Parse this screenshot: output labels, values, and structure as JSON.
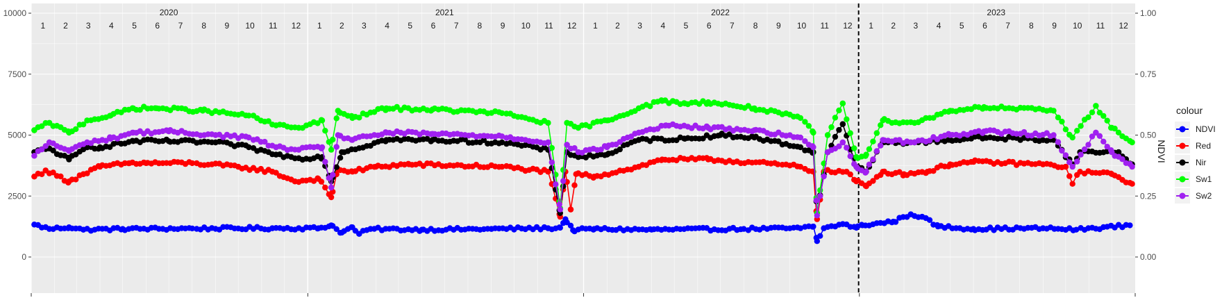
{
  "chart_data": {
    "type": "line",
    "title": "",
    "xlabel": "",
    "ylabel": "",
    "y2label": "NDVI",
    "x_range": [
      "2020-01-01",
      "2024-01-01"
    ],
    "ylim": [
      0,
      10000
    ],
    "y_ticks": [
      0,
      2500,
      5000,
      7500,
      10000
    ],
    "y2lim": [
      0,
      1
    ],
    "y2_ticks": [
      "0.00",
      "0.25",
      "0.50",
      "0.75",
      "1.00"
    ],
    "years": [
      {
        "label": "2020",
        "months": [
          "1",
          "2",
          "3",
          "4",
          "5",
          "6",
          "7",
          "8",
          "9",
          "10",
          "11",
          "12"
        ]
      },
      {
        "label": "2021",
        "months": [
          "1",
          "2",
          "3",
          "4",
          "5",
          "6",
          "7",
          "8",
          "9",
          "10",
          "11",
          "12"
        ]
      },
      {
        "label": "2022",
        "months": [
          "1",
          "2",
          "3",
          "4",
          "5",
          "6",
          "7",
          "8",
          "9",
          "10",
          "11",
          "12"
        ]
      },
      {
        "label": "2023",
        "months": [
          "1",
          "2",
          "3",
          "4",
          "5",
          "6",
          "7",
          "8",
          "9",
          "10",
          "11",
          "12"
        ]
      }
    ],
    "vline_date": "2022-12-31",
    "grid": true,
    "legend": {
      "title": "colour",
      "placement": "right"
    },
    "series": [
      {
        "name": "NDVI",
        "color": "#0000ff",
        "axis": "right",
        "anchors": [
          [
            "2020-01-05",
            0.133
          ],
          [
            "2020-01-25",
            0.115
          ],
          [
            "2020-02-20",
            0.122
          ],
          [
            "2020-03-10",
            0.112
          ],
          [
            "2020-05-01",
            0.115
          ],
          [
            "2020-08-01",
            0.117
          ],
          [
            "2020-11-15",
            0.118
          ],
          [
            "2021-01-15",
            0.118
          ],
          [
            "2021-02-01",
            0.13
          ],
          [
            "2021-02-15",
            0.1
          ],
          [
            "2021-03-01",
            0.122
          ],
          [
            "2021-03-10",
            0.095
          ],
          [
            "2021-03-25",
            0.115
          ],
          [
            "2021-06-01",
            0.112
          ],
          [
            "2021-09-01",
            0.115
          ],
          [
            "2021-11-15",
            0.118
          ],
          [
            "2021-12-01",
            0.12
          ],
          [
            "2021-12-08",
            0.155
          ],
          [
            "2021-12-18",
            0.11
          ],
          [
            "2022-01-15",
            0.115
          ],
          [
            "2022-04-01",
            0.112
          ],
          [
            "2022-08-01",
            0.115
          ],
          [
            "2022-10-15",
            0.118
          ],
          [
            "2022-11-01",
            0.125
          ],
          [
            "2022-11-06",
            0.065
          ],
          [
            "2022-11-15",
            0.118
          ],
          [
            "2022-12-10",
            0.135
          ],
          [
            "2022-12-28",
            0.12
          ],
          [
            "2023-01-05",
            0.13
          ],
          [
            "2023-02-15",
            0.145
          ],
          [
            "2023-03-10",
            0.175
          ],
          [
            "2023-03-25",
            0.165
          ],
          [
            "2023-04-15",
            0.125
          ],
          [
            "2023-06-01",
            0.115
          ],
          [
            "2023-09-01",
            0.118
          ],
          [
            "2023-10-15",
            0.112
          ],
          [
            "2023-12-25",
            0.13
          ]
        ]
      },
      {
        "name": "Red",
        "color": "#ff0000",
        "axis": "left",
        "anchors": [
          [
            "2020-01-05",
            3300
          ],
          [
            "2020-01-20",
            3550
          ],
          [
            "2020-02-20",
            3100
          ],
          [
            "2020-03-10",
            3400
          ],
          [
            "2020-04-01",
            3700
          ],
          [
            "2020-05-10",
            3850
          ],
          [
            "2020-06-01",
            3850
          ],
          [
            "2020-08-01",
            3850
          ],
          [
            "2020-10-01",
            3700
          ],
          [
            "2020-11-15",
            3500
          ],
          [
            "2020-12-15",
            3100
          ],
          [
            "2021-01-15",
            3200
          ],
          [
            "2021-02-01",
            2450
          ],
          [
            "2021-02-10",
            3600
          ],
          [
            "2021-03-01",
            3500
          ],
          [
            "2021-04-01",
            3700
          ],
          [
            "2021-05-15",
            3800
          ],
          [
            "2021-09-15",
            3700
          ],
          [
            "2021-11-15",
            3500
          ],
          [
            "2021-12-01",
            1650
          ],
          [
            "2021-12-08",
            3500
          ],
          [
            "2021-12-15",
            1950
          ],
          [
            "2021-12-22",
            3400
          ],
          [
            "2022-01-15",
            3300
          ],
          [
            "2022-03-15",
            3700
          ],
          [
            "2022-04-15",
            4000
          ],
          [
            "2022-06-15",
            4000
          ],
          [
            "2022-09-15",
            3800
          ],
          [
            "2022-10-15",
            3700
          ],
          [
            "2022-11-01",
            3500
          ],
          [
            "2022-11-06",
            1550
          ],
          [
            "2022-11-15",
            3500
          ],
          [
            "2022-12-15",
            3500
          ],
          [
            "2022-12-28",
            3100
          ],
          [
            "2023-01-10",
            2900
          ],
          [
            "2023-02-01",
            3500
          ],
          [
            "2023-03-01",
            3400
          ],
          [
            "2023-04-01",
            3500
          ],
          [
            "2023-05-01",
            3800
          ],
          [
            "2023-06-01",
            3900
          ],
          [
            "2023-09-01",
            3800
          ],
          [
            "2023-10-01",
            3700
          ],
          [
            "2023-10-10",
            3000
          ],
          [
            "2023-10-20",
            3500
          ],
          [
            "2023-12-01",
            3400
          ],
          [
            "2023-12-28",
            3000
          ]
        ]
      },
      {
        "name": "Nir",
        "color": "#000000",
        "axis": "left",
        "anchors": [
          [
            "2020-01-05",
            4300
          ],
          [
            "2020-01-25",
            4450
          ],
          [
            "2020-02-20",
            4000
          ],
          [
            "2020-03-15",
            4500
          ],
          [
            "2020-04-01",
            4500
          ],
          [
            "2020-05-15",
            4750
          ],
          [
            "2020-07-01",
            4750
          ],
          [
            "2020-09-01",
            4700
          ],
          [
            "2020-10-15",
            4500
          ],
          [
            "2020-11-20",
            4200
          ],
          [
            "2020-12-20",
            4050
          ],
          [
            "2021-01-20",
            4100
          ],
          [
            "2021-02-01",
            3100
          ],
          [
            "2021-02-15",
            4300
          ],
          [
            "2021-04-15",
            4800
          ],
          [
            "2021-06-15",
            4800
          ],
          [
            "2021-09-15",
            4700
          ],
          [
            "2021-11-15",
            4400
          ],
          [
            "2021-12-01",
            1800
          ],
          [
            "2021-12-10",
            4300
          ],
          [
            "2021-12-25",
            4100
          ],
          [
            "2022-02-01",
            4200
          ],
          [
            "2022-03-15",
            4800
          ],
          [
            "2022-05-15",
            4850
          ],
          [
            "2022-07-01",
            5000
          ],
          [
            "2022-08-15",
            4900
          ],
          [
            "2022-10-15",
            4500
          ],
          [
            "2022-11-01",
            4300
          ],
          [
            "2022-11-06",
            1800
          ],
          [
            "2022-11-20",
            4300
          ],
          [
            "2022-12-10",
            5450
          ],
          [
            "2022-12-28",
            3700
          ],
          [
            "2023-01-10",
            3500
          ],
          [
            "2023-02-01",
            4700
          ],
          [
            "2023-03-15",
            4700
          ],
          [
            "2023-05-01",
            4800
          ],
          [
            "2023-06-15",
            4900
          ],
          [
            "2023-09-15",
            4800
          ],
          [
            "2023-10-10",
            3800
          ],
          [
            "2023-10-20",
            4300
          ],
          [
            "2023-12-10",
            4300
          ],
          [
            "2023-12-28",
            3800
          ]
        ]
      },
      {
        "name": "Sw1",
        "color": "#00ff00",
        "axis": "left",
        "anchors": [
          [
            "2020-01-05",
            5200
          ],
          [
            "2020-01-25",
            5500
          ],
          [
            "2020-02-20",
            5100
          ],
          [
            "2020-03-15",
            5600
          ],
          [
            "2020-04-15",
            5800
          ],
          [
            "2020-05-15",
            6100
          ],
          [
            "2020-06-15",
            6100
          ],
          [
            "2020-08-15",
            6000
          ],
          [
            "2020-10-15",
            5800
          ],
          [
            "2020-11-20",
            5400
          ],
          [
            "2020-12-20",
            5300
          ],
          [
            "2021-01-20",
            5600
          ],
          [
            "2021-02-01",
            4400
          ],
          [
            "2021-02-10",
            6000
          ],
          [
            "2021-03-01",
            5700
          ],
          [
            "2021-04-15",
            6100
          ],
          [
            "2021-06-15",
            6050
          ],
          [
            "2021-09-15",
            5900
          ],
          [
            "2021-11-15",
            5500
          ],
          [
            "2021-12-01",
            2000
          ],
          [
            "2021-12-10",
            5500
          ],
          [
            "2021-12-25",
            5300
          ],
          [
            "2022-02-01",
            5600
          ],
          [
            "2022-03-15",
            6100
          ],
          [
            "2022-04-15",
            6400
          ],
          [
            "2022-05-15",
            6300
          ],
          [
            "2022-06-15",
            6350
          ],
          [
            "2022-08-15",
            6100
          ],
          [
            "2022-10-15",
            5700
          ],
          [
            "2022-11-01",
            5100
          ],
          [
            "2022-11-06",
            1800
          ],
          [
            "2022-11-20",
            5000
          ],
          [
            "2022-12-10",
            6300
          ],
          [
            "2022-12-28",
            4100
          ],
          [
            "2023-01-10",
            4200
          ],
          [
            "2023-02-01",
            5600
          ],
          [
            "2023-03-15",
            5500
          ],
          [
            "2023-05-01",
            6000
          ],
          [
            "2023-06-15",
            6150
          ],
          [
            "2023-09-15",
            6000
          ],
          [
            "2023-10-10",
            4900
          ],
          [
            "2023-11-10",
            6200
          ],
          [
            "2023-12-01",
            5300
          ],
          [
            "2023-12-28",
            4700
          ]
        ]
      },
      {
        "name": "Sw2",
        "color": "#a020f0",
        "axis": "left",
        "anchors": [
          [
            "2020-01-05",
            4150
          ],
          [
            "2020-01-25",
            4700
          ],
          [
            "2020-02-20",
            4350
          ],
          [
            "2020-03-15",
            4700
          ],
          [
            "2020-04-15",
            4850
          ],
          [
            "2020-05-15",
            5100
          ],
          [
            "2020-07-01",
            5150
          ],
          [
            "2020-09-01",
            5000
          ],
          [
            "2020-10-15",
            4900
          ],
          [
            "2020-11-20",
            4500
          ],
          [
            "2020-12-20",
            4400
          ],
          [
            "2021-01-20",
            4500
          ],
          [
            "2021-02-01",
            2850
          ],
          [
            "2021-02-10",
            5000
          ],
          [
            "2021-03-01",
            4800
          ],
          [
            "2021-04-15",
            5100
          ],
          [
            "2021-06-15",
            5050
          ],
          [
            "2021-09-15",
            4950
          ],
          [
            "2021-11-15",
            4700
          ],
          [
            "2021-12-01",
            1950
          ],
          [
            "2021-12-10",
            4600
          ],
          [
            "2021-12-25",
            4300
          ],
          [
            "2022-02-01",
            4500
          ],
          [
            "2022-03-15",
            5100
          ],
          [
            "2022-04-20",
            5400
          ],
          [
            "2022-06-15",
            5300
          ],
          [
            "2022-08-15",
            5200
          ],
          [
            "2022-10-15",
            4900
          ],
          [
            "2022-11-01",
            4500
          ],
          [
            "2022-11-06",
            1700
          ],
          [
            "2022-11-20",
            4300
          ],
          [
            "2022-12-10",
            4700
          ],
          [
            "2022-12-28",
            3700
          ],
          [
            "2023-01-10",
            3500
          ],
          [
            "2023-02-01",
            4800
          ],
          [
            "2023-03-15",
            4700
          ],
          [
            "2023-05-01",
            5000
          ],
          [
            "2023-06-15",
            5150
          ],
          [
            "2023-09-15",
            5000
          ],
          [
            "2023-10-10",
            3700
          ],
          [
            "2023-11-10",
            5100
          ],
          [
            "2023-12-01",
            4300
          ],
          [
            "2023-12-28",
            3700
          ]
        ]
      }
    ]
  }
}
